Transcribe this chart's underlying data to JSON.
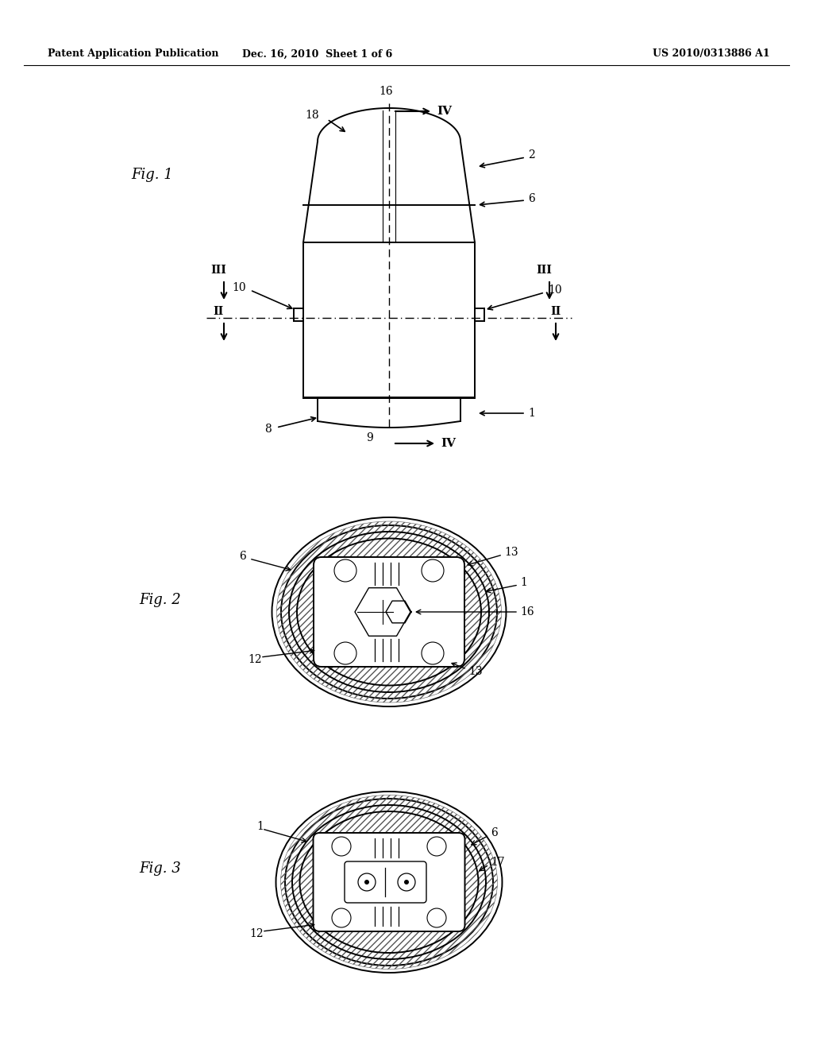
{
  "bg_color": "#ffffff",
  "header_left": "Patent Application Publication",
  "header_mid": "Dec. 16, 2010  Sheet 1 of 6",
  "header_right": "US 2010/0313886 A1",
  "fig1_label": "Fig. 1",
  "fig2_label": "Fig. 2",
  "fig3_label": "Fig. 3",
  "line_color": "#000000"
}
